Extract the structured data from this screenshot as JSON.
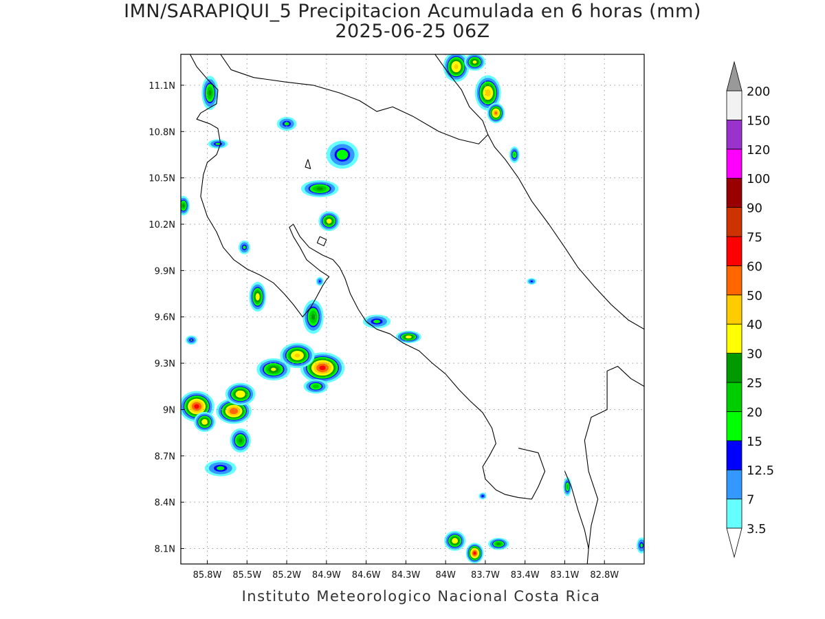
{
  "title": {
    "line1": "IMN/SARAPIQUI_5 Precipitacion Acumulada en 6 horas (mm)",
    "line2": "2025-06-25 06Z"
  },
  "footer": "Instituto Meteorologico Nacional Costa Rica",
  "map": {
    "lon_range": [
      -86.0,
      -82.5
    ],
    "lat_range": [
      8.0,
      11.3
    ],
    "lon_ticks": [
      {
        "value": -85.8,
        "label": "85.8W"
      },
      {
        "value": -85.5,
        "label": "85.5W"
      },
      {
        "value": -85.2,
        "label": "85.2W"
      },
      {
        "value": -84.9,
        "label": "84.9W"
      },
      {
        "value": -84.6,
        "label": "84.6W"
      },
      {
        "value": -84.3,
        "label": "84.3W"
      },
      {
        "value": -84.0,
        "label": "84W"
      },
      {
        "value": -83.7,
        "label": "83.7W"
      },
      {
        "value": -83.4,
        "label": "83.4W"
      },
      {
        "value": -83.1,
        "label": "83.1W"
      },
      {
        "value": -82.8,
        "label": "82.8W"
      }
    ],
    "lat_ticks": [
      {
        "value": 11.1,
        "label": "11.1N"
      },
      {
        "value": 10.8,
        "label": "10.8N"
      },
      {
        "value": 10.5,
        "label": "10.5N"
      },
      {
        "value": 10.2,
        "label": "10.2N"
      },
      {
        "value": 9.9,
        "label": "9.9N"
      },
      {
        "value": 9.6,
        "label": "9.6N"
      },
      {
        "value": 9.3,
        "label": "9.3N"
      },
      {
        "value": 9.0,
        "label": "9N"
      },
      {
        "value": 8.7,
        "label": "8.7N"
      },
      {
        "value": 8.4,
        "label": "8.4N"
      },
      {
        "value": 8.1,
        "label": "8.1N"
      }
    ],
    "grid": true,
    "coast_color": "#000000",
    "coastline": [
      [
        -85.93,
        11.3
      ],
      [
        -85.88,
        11.22
      ],
      [
        -85.8,
        11.14
      ],
      [
        -85.72,
        11.07
      ],
      [
        -85.73,
        10.98
      ],
      [
        -85.85,
        10.92
      ],
      [
        -85.88,
        10.88
      ],
      [
        -85.78,
        10.85
      ],
      [
        -85.72,
        10.82
      ],
      [
        -85.7,
        10.72
      ],
      [
        -85.73,
        10.65
      ],
      [
        -85.8,
        10.6
      ],
      [
        -85.83,
        10.52
      ],
      [
        -85.85,
        10.38
      ],
      [
        -85.8,
        10.25
      ],
      [
        -85.73,
        10.15
      ],
      [
        -85.68,
        10.05
      ],
      [
        -85.6,
        9.97
      ],
      [
        -85.5,
        9.91
      ],
      [
        -85.4,
        9.87
      ],
      [
        -85.3,
        9.82
      ],
      [
        -85.22,
        9.75
      ],
      [
        -85.15,
        9.68
      ],
      [
        -85.08,
        9.6
      ],
      [
        -85.02,
        9.66
      ],
      [
        -84.98,
        9.72
      ],
      [
        -84.93,
        9.8
      ],
      [
        -84.9,
        9.84
      ],
      [
        -84.88,
        9.86
      ],
      [
        -84.95,
        9.9
      ],
      [
        -85.05,
        9.97
      ],
      [
        -85.1,
        10.05
      ],
      [
        -85.15,
        10.12
      ],
      [
        -85.18,
        10.18
      ],
      [
        -85.15,
        10.2
      ],
      [
        -85.1,
        10.12
      ],
      [
        -85.03,
        10.05
      ],
      [
        -84.93,
        10.0
      ],
      [
        -84.85,
        9.97
      ],
      [
        -84.8,
        9.92
      ],
      [
        -84.76,
        9.85
      ],
      [
        -84.72,
        9.75
      ],
      [
        -84.66,
        9.65
      ],
      [
        -84.6,
        9.57
      ],
      [
        -84.52,
        9.52
      ],
      [
        -84.42,
        9.49
      ],
      [
        -84.32,
        9.43
      ],
      [
        -84.2,
        9.38
      ],
      [
        -84.1,
        9.3
      ],
      [
        -84.0,
        9.23
      ],
      [
        -83.9,
        9.13
      ],
      [
        -83.82,
        9.06
      ],
      [
        -83.72,
        8.98
      ],
      [
        -83.65,
        8.88
      ],
      [
        -83.62,
        8.78
      ],
      [
        -83.67,
        8.7
      ],
      [
        -83.72,
        8.63
      ],
      [
        -83.7,
        8.55
      ],
      [
        -83.62,
        8.48
      ],
      [
        -83.55,
        8.45
      ],
      [
        -83.45,
        8.43
      ],
      [
        -83.35,
        8.42
      ]
    ],
    "coastline_east": [
      [
        -84.08,
        11.3
      ],
      [
        -83.98,
        11.18
      ],
      [
        -83.88,
        11.07
      ],
      [
        -83.82,
        10.96
      ],
      [
        -83.72,
        10.87
      ],
      [
        -83.68,
        10.78
      ],
      [
        -83.63,
        10.7
      ],
      [
        -83.55,
        10.62
      ],
      [
        -83.45,
        10.5
      ],
      [
        -83.35,
        10.35
      ],
      [
        -83.22,
        10.2
      ],
      [
        -83.1,
        10.05
      ],
      [
        -83.0,
        9.92
      ],
      [
        -82.88,
        9.8
      ],
      [
        -82.75,
        9.68
      ],
      [
        -82.62,
        9.58
      ],
      [
        -82.5,
        9.52
      ]
    ],
    "border_north": [
      [
        -85.7,
        11.3
      ],
      [
        -85.62,
        11.2
      ],
      [
        -85.45,
        11.15
      ],
      [
        -85.2,
        11.12
      ],
      [
        -85.0,
        11.1
      ],
      [
        -84.8,
        11.05
      ],
      [
        -84.65,
        11.0
      ],
      [
        -84.52,
        10.93
      ],
      [
        -84.4,
        10.96
      ],
      [
        -84.25,
        10.9
      ],
      [
        -84.05,
        10.8
      ],
      [
        -83.9,
        10.75
      ],
      [
        -83.75,
        10.72
      ],
      [
        -83.68,
        10.78
      ]
    ],
    "border_south": [
      [
        -82.5,
        9.15
      ],
      [
        -82.6,
        9.2
      ],
      [
        -82.7,
        9.28
      ],
      [
        -82.78,
        9.25
      ],
      [
        -82.78,
        9.0
      ],
      [
        -82.9,
        8.95
      ],
      [
        -82.95,
        8.8
      ],
      [
        -82.92,
        8.6
      ],
      [
        -82.85,
        8.42
      ],
      [
        -82.9,
        8.25
      ],
      [
        -82.92,
        8.1
      ],
      [
        -82.93,
        8.0
      ]
    ],
    "osa_peninsula": [
      [
        -83.45,
        8.75
      ],
      [
        -83.3,
        8.72
      ],
      [
        -83.25,
        8.6
      ],
      [
        -83.3,
        8.5
      ],
      [
        -83.35,
        8.42
      ]
    ],
    "burica": [
      [
        -83.1,
        8.6
      ],
      [
        -83.05,
        8.5
      ],
      [
        -83.0,
        8.35
      ],
      [
        -82.95,
        8.22
      ],
      [
        -82.92,
        8.1
      ]
    ],
    "gulf_islands": [
      [
        [
          -84.95,
          10.12
        ],
        [
          -84.9,
          10.1
        ],
        [
          -84.92,
          10.06
        ],
        [
          -84.97,
          10.08
        ],
        [
          -84.95,
          10.12
        ]
      ],
      [
        [
          -85.04,
          10.62
        ],
        [
          -85.02,
          10.56
        ],
        [
          -85.06,
          10.57
        ],
        [
          -85.04,
          10.62
        ]
      ]
    ]
  },
  "precip_cells": [
    {
      "lon": -85.88,
      "lat": 9.02,
      "rx": 0.16,
      "ry": 0.12,
      "max_mm": 62
    },
    {
      "lon": -85.6,
      "lat": 8.99,
      "rx": 0.16,
      "ry": 0.1,
      "max_mm": 58
    },
    {
      "lon": -85.55,
      "lat": 9.1,
      "rx": 0.14,
      "ry": 0.09,
      "max_mm": 38
    },
    {
      "lon": -85.82,
      "lat": 8.92,
      "rx": 0.1,
      "ry": 0.08,
      "max_mm": 36
    },
    {
      "lon": -84.93,
      "lat": 9.27,
      "rx": 0.2,
      "ry": 0.12,
      "max_mm": 62
    },
    {
      "lon": -85.12,
      "lat": 9.35,
      "rx": 0.16,
      "ry": 0.1,
      "max_mm": 42
    },
    {
      "lon": -85.3,
      "lat": 9.26,
      "rx": 0.16,
      "ry": 0.09,
      "max_mm": 30
    },
    {
      "lon": -84.98,
      "lat": 9.15,
      "rx": 0.12,
      "ry": 0.06,
      "max_mm": 22
    },
    {
      "lon": -85.55,
      "lat": 8.8,
      "rx": 0.1,
      "ry": 0.1,
      "max_mm": 26
    },
    {
      "lon": -85.7,
      "lat": 8.62,
      "rx": 0.16,
      "ry": 0.07,
      "max_mm": 16
    },
    {
      "lon": -85.42,
      "lat": 9.73,
      "rx": 0.08,
      "ry": 0.12,
      "max_mm": 34
    },
    {
      "lon": -85.0,
      "lat": 9.6,
      "rx": 0.1,
      "ry": 0.14,
      "max_mm": 26
    },
    {
      "lon": -84.28,
      "lat": 9.47,
      "rx": 0.12,
      "ry": 0.05,
      "max_mm": 34
    },
    {
      "lon": -84.52,
      "lat": 9.57,
      "rx": 0.14,
      "ry": 0.06,
      "max_mm": 16
    },
    {
      "lon": -84.95,
      "lat": 10.43,
      "rx": 0.18,
      "ry": 0.07,
      "max_mm": 26
    },
    {
      "lon": -84.88,
      "lat": 10.22,
      "rx": 0.1,
      "ry": 0.08,
      "max_mm": 34
    },
    {
      "lon": -84.78,
      "lat": 10.65,
      "rx": 0.16,
      "ry": 0.12,
      "max_mm": 18
    },
    {
      "lon": -85.78,
      "lat": 11.05,
      "rx": 0.08,
      "ry": 0.14,
      "max_mm": 26
    },
    {
      "lon": -85.2,
      "lat": 10.85,
      "rx": 0.1,
      "ry": 0.06,
      "max_mm": 16
    },
    {
      "lon": -85.72,
      "lat": 10.72,
      "rx": 0.1,
      "ry": 0.04,
      "max_mm": 16
    },
    {
      "lon": -85.52,
      "lat": 10.05,
      "rx": 0.06,
      "ry": 0.06,
      "max_mm": 16
    },
    {
      "lon": -85.98,
      "lat": 10.32,
      "rx": 0.06,
      "ry": 0.08,
      "max_mm": 26
    },
    {
      "lon": -83.92,
      "lat": 11.22,
      "rx": 0.12,
      "ry": 0.12,
      "max_mm": 42
    },
    {
      "lon": -83.68,
      "lat": 11.05,
      "rx": 0.12,
      "ry": 0.14,
      "max_mm": 44
    },
    {
      "lon": -83.62,
      "lat": 10.92,
      "rx": 0.08,
      "ry": 0.08,
      "max_mm": 52
    },
    {
      "lon": -83.78,
      "lat": 11.25,
      "rx": 0.1,
      "ry": 0.07,
      "max_mm": 32
    },
    {
      "lon": -83.48,
      "lat": 10.65,
      "rx": 0.05,
      "ry": 0.07,
      "max_mm": 20
    },
    {
      "lon": -83.93,
      "lat": 8.15,
      "rx": 0.1,
      "ry": 0.08,
      "max_mm": 36
    },
    {
      "lon": -83.78,
      "lat": 8.07,
      "rx": 0.08,
      "ry": 0.08,
      "max_mm": 62
    },
    {
      "lon": -83.6,
      "lat": 8.13,
      "rx": 0.1,
      "ry": 0.05,
      "max_mm": 26
    },
    {
      "lon": -83.08,
      "lat": 8.5,
      "rx": 0.04,
      "ry": 0.08,
      "max_mm": 22
    },
    {
      "lon": -82.52,
      "lat": 8.12,
      "rx": 0.05,
      "ry": 0.07,
      "max_mm": 16
    },
    {
      "lon": -83.35,
      "lat": 9.83,
      "rx": 0.05,
      "ry": 0.03,
      "max_mm": 13
    },
    {
      "lon": -83.72,
      "lat": 8.44,
      "rx": 0.04,
      "ry": 0.03,
      "max_mm": 14
    },
    {
      "lon": -85.92,
      "lat": 9.45,
      "rx": 0.06,
      "ry": 0.04,
      "max_mm": 15
    },
    {
      "lon": -84.95,
      "lat": 9.83,
      "rx": 0.04,
      "ry": 0.04,
      "max_mm": 13
    }
  ],
  "colorbar": {
    "labels": [
      "3.5",
      "7",
      "12.5",
      "15",
      "20",
      "25",
      "30",
      "40",
      "50",
      "60",
      "75",
      "90",
      "100",
      "120",
      "150",
      "200"
    ],
    "colors": [
      "#66ffff",
      "#3399ff",
      "#0000ff",
      "#00ff00",
      "#00cc00",
      "#009900",
      "#ffff00",
      "#ffcc00",
      "#ff6600",
      "#ff0000",
      "#cc3300",
      "#990000",
      "#ff00ff",
      "#9933cc",
      "#f2f2f2",
      "#999999"
    ]
  }
}
